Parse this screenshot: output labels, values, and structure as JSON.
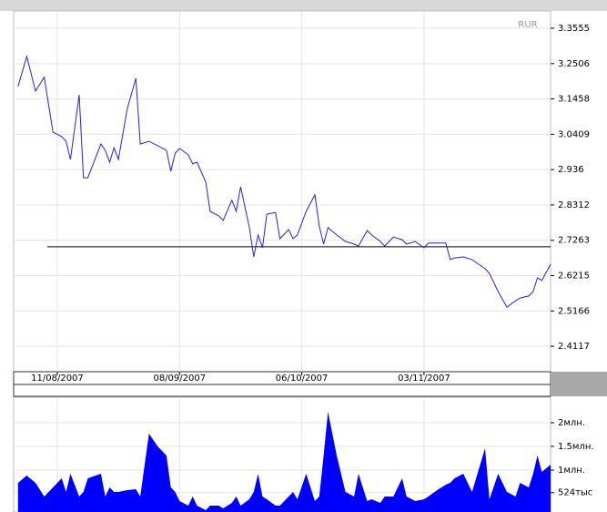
{
  "chart_data": [
    {
      "type": "line",
      "y_unit": "RUR",
      "x": [
        "2007-08-02",
        "2007-08-04",
        "2007-08-06",
        "2007-08-08",
        "2007-08-10",
        "2007-08-12",
        "2007-08-13",
        "2007-08-14",
        "2007-08-16",
        "2007-08-17",
        "2007-08-18",
        "2007-08-21",
        "2007-08-22",
        "2007-08-23",
        "2007-08-24",
        "2007-08-25",
        "2007-08-27",
        "2007-08-29",
        "2007-08-30",
        "2007-09-01",
        "2007-09-03",
        "2007-09-05",
        "2007-09-06",
        "2007-09-07",
        "2007-09-08",
        "2007-09-10",
        "2007-09-11",
        "2007-09-12",
        "2007-09-14",
        "2007-09-15",
        "2007-09-17",
        "2007-09-18",
        "2007-09-20",
        "2007-09-21",
        "2007-09-22",
        "2007-09-24",
        "2007-09-25",
        "2007-09-26",
        "2007-09-27",
        "2007-09-28",
        "2007-09-30",
        "2007-10-01",
        "2007-10-03",
        "2007-10-04",
        "2007-10-05",
        "2007-10-07",
        "2007-10-09",
        "2007-10-10",
        "2007-10-11",
        "2007-10-12",
        "2007-10-14",
        "2007-10-16",
        "2007-10-18",
        "2007-10-19",
        "2007-10-21",
        "2007-10-22",
        "2007-10-24",
        "2007-10-25",
        "2007-10-27",
        "2007-10-29",
        "2007-10-30",
        "2007-11-01",
        "2007-11-03",
        "2007-11-04",
        "2007-11-06",
        "2007-11-08",
        "2007-11-09",
        "2007-11-10",
        "2007-11-12",
        "2007-11-14",
        "2007-11-17",
        "2007-11-18",
        "2007-11-20",
        "2007-11-22",
        "2007-11-24",
        "2007-11-25",
        "2007-11-27",
        "2007-11-28",
        "2007-11-29",
        "2007-11-30",
        "2007-12-02"
      ],
      "series": [
        {
          "color": "#2222e8",
          "values": [
            3.183,
            3.272,
            3.169,
            3.21,
            3.047,
            3.034,
            3.02,
            2.966,
            3.158,
            2.912,
            2.912,
            3.012,
            2.993,
            2.958,
            3.001,
            2.966,
            3.115,
            3.207,
            3.012,
            3.02,
            3.007,
            2.993,
            2.931,
            2.985,
            2.999,
            2.98,
            2.953,
            2.958,
            2.899,
            2.812,
            2.799,
            2.785,
            2.845,
            2.812,
            2.885,
            2.764,
            2.677,
            2.742,
            2.704,
            2.804,
            2.809,
            2.731,
            2.758,
            2.731,
            2.742,
            2.812,
            2.861,
            2.769,
            2.715,
            2.764,
            2.742,
            2.723,
            2.715,
            2.709,
            2.755,
            2.742,
            2.723,
            2.709,
            2.736,
            2.728,
            2.715,
            2.723,
            2.704,
            2.718,
            2.718,
            2.718,
            2.669,
            2.674,
            2.677,
            2.669,
            2.642,
            2.628,
            2.574,
            2.528,
            2.547,
            2.555,
            2.561,
            2.574,
            2.615,
            2.607,
            2.655
          ]
        }
      ],
      "hline": 2.707,
      "xlim": [
        "2007-08-01",
        "2007-12-02"
      ],
      "xticks": [
        {
          "value": "2007-08-11",
          "label": "11/08/2007"
        },
        {
          "value": "2007-09-08",
          "label": "08/09/2007"
        },
        {
          "value": "2007-10-06",
          "label": "06/10/2007"
        },
        {
          "value": "2007-11-03",
          "label": "03/11/2007"
        }
      ],
      "ylim": [
        2.3363,
        3.4069
      ],
      "yticks": [
        3.3555,
        3.2506,
        3.1458,
        3.0409,
        2.936,
        2.8312,
        2.7263,
        2.6215,
        2.5166,
        2.4117
      ],
      "grid": true
    },
    {
      "type": "area",
      "x": [
        "2007-08-02",
        "2007-08-04",
        "2007-08-06",
        "2007-08-08",
        "2007-08-10",
        "2007-08-12",
        "2007-08-13",
        "2007-08-14",
        "2007-08-16",
        "2007-08-17",
        "2007-08-18",
        "2007-08-21",
        "2007-08-22",
        "2007-08-23",
        "2007-08-24",
        "2007-08-25",
        "2007-08-27",
        "2007-08-29",
        "2007-08-30",
        "2007-09-01",
        "2007-09-03",
        "2007-09-05",
        "2007-09-06",
        "2007-09-07",
        "2007-09-08",
        "2007-09-10",
        "2007-09-11",
        "2007-09-12",
        "2007-09-14",
        "2007-09-15",
        "2007-09-17",
        "2007-09-18",
        "2007-09-20",
        "2007-09-21",
        "2007-09-22",
        "2007-09-24",
        "2007-09-25",
        "2007-09-26",
        "2007-09-27",
        "2007-09-28",
        "2007-09-30",
        "2007-10-01",
        "2007-10-03",
        "2007-10-04",
        "2007-10-05",
        "2007-10-07",
        "2007-10-09",
        "2007-10-10",
        "2007-10-11",
        "2007-10-12",
        "2007-10-14",
        "2007-10-16",
        "2007-10-18",
        "2007-10-19",
        "2007-10-21",
        "2007-10-22",
        "2007-10-24",
        "2007-10-25",
        "2007-10-27",
        "2007-10-29",
        "2007-10-30",
        "2007-11-01",
        "2007-11-03",
        "2007-11-04",
        "2007-11-06",
        "2007-11-08",
        "2007-11-09",
        "2007-11-10",
        "2007-11-12",
        "2007-11-14",
        "2007-11-17",
        "2007-11-18",
        "2007-11-20",
        "2007-11-22",
        "2007-11-24",
        "2007-11-25",
        "2007-11-27",
        "2007-11-28",
        "2007-11-29",
        "2007-11-30",
        "2007-12-02"
      ],
      "series": [
        {
          "color": "#0000ff",
          "values": [
            731000,
            885000,
            731000,
            442000,
            635000,
            827000,
            538000,
            923000,
            442000,
            538000,
            827000,
            923000,
            442000,
            635000,
            538000,
            538000,
            577000,
            596000,
            442000,
            1769000,
            1500000,
            1308000,
            635000,
            538000,
            346000,
            250000,
            442000,
            250000,
            154000,
            250000,
            250000,
            192000,
            308000,
            442000,
            250000,
            385000,
            538000,
            923000,
            442000,
            385000,
            250000,
            250000,
            442000,
            538000,
            385000,
            923000,
            346000,
            442000,
            1308000,
            2231000,
            1308000,
            538000,
            442000,
            923000,
            346000,
            385000,
            308000,
            442000,
            442000,
            827000,
            442000,
            346000,
            385000,
            442000,
            577000,
            692000,
            731000,
            827000,
            923000,
            538000,
            1462000,
            385000,
            923000,
            538000,
            442000,
            731000,
            635000,
            923000,
            1308000,
            962000,
            1115000
          ]
        }
      ],
      "xlim": [
        "2007-08-01",
        "2007-12-02"
      ],
      "ylim": [
        115000,
        2538000
      ],
      "yticks": [
        {
          "value": 2000000,
          "label": "2млн."
        },
        {
          "value": 1500000,
          "label": "1.5млн."
        },
        {
          "value": 1000000,
          "label": "1млн."
        },
        {
          "value": 524000,
          "label": "524тыс"
        }
      ],
      "grid": true
    }
  ]
}
